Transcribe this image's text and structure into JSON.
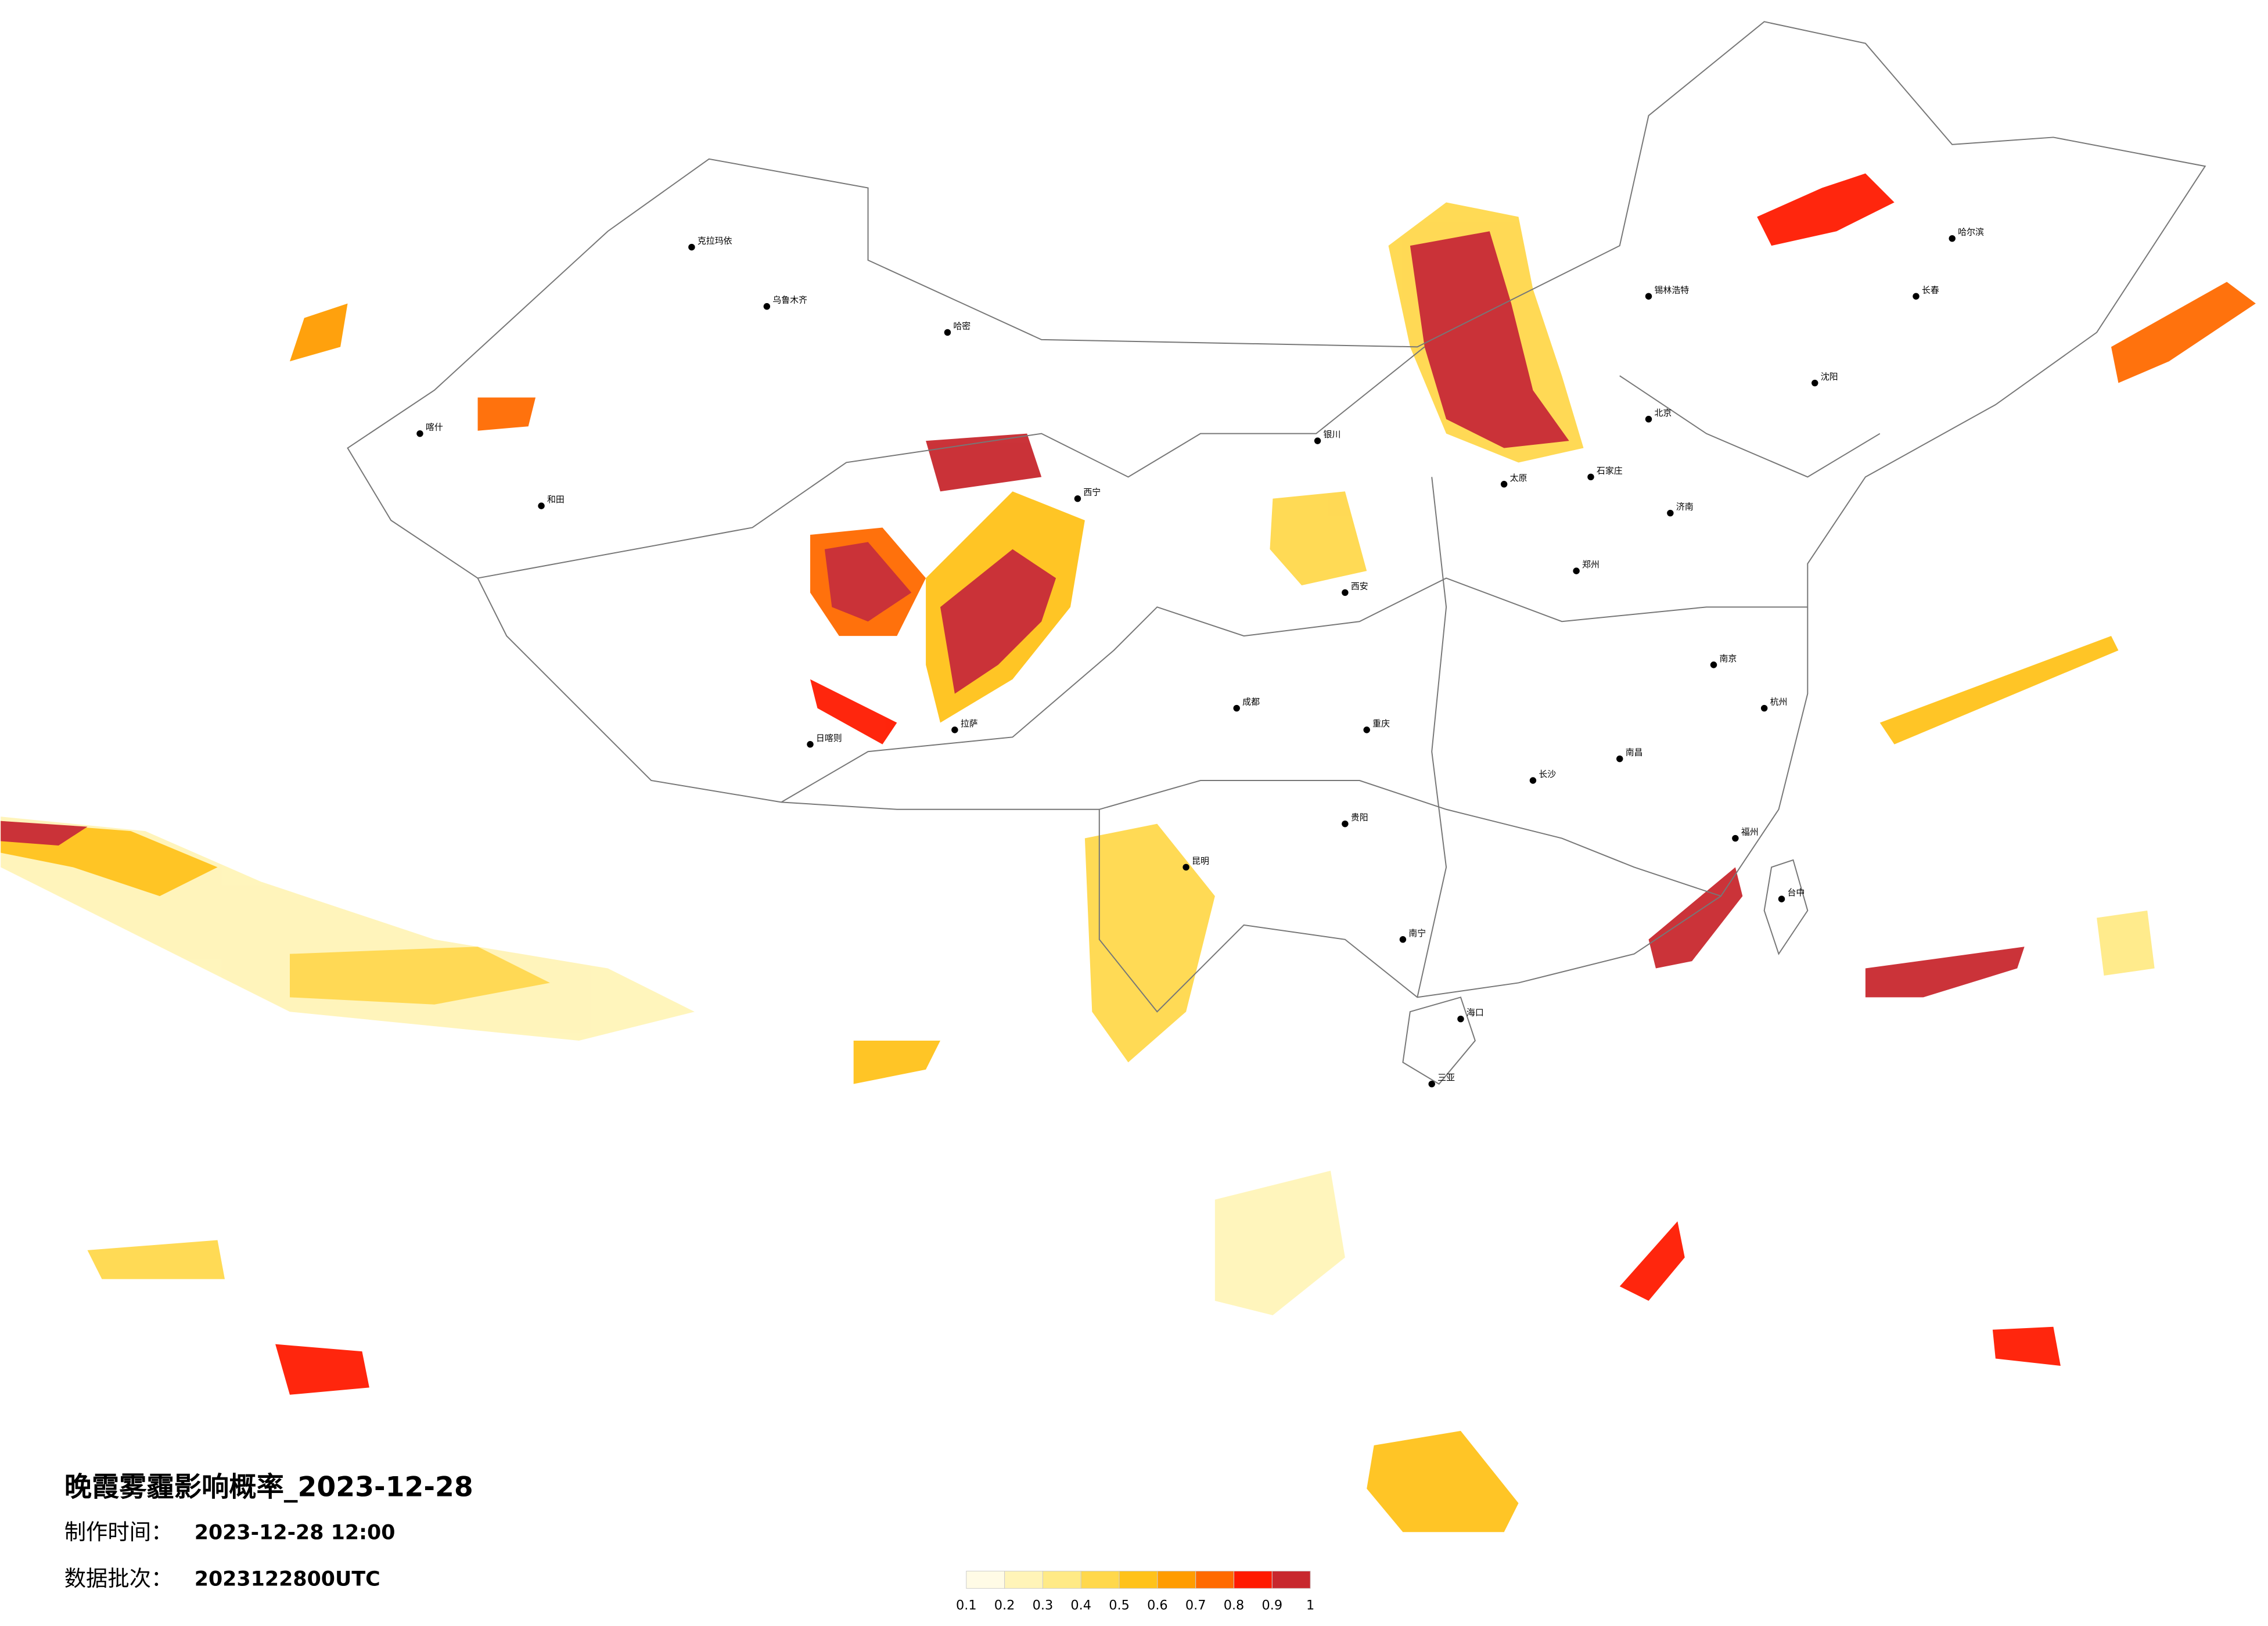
{
  "title": "晚霞雾霾影响概率_2023-12-28",
  "production_time": {
    "label": "制作时间：",
    "value": "2023-12-28 12:00"
  },
  "batch": {
    "label": "数据批次：",
    "value": "2023122800UTC"
  },
  "legend": {
    "ticks": [
      0.1,
      0.2,
      0.3,
      0.4,
      0.5,
      0.6,
      0.7,
      0.8,
      0.9,
      1
    ],
    "colors": [
      "#fffbe6",
      "#fff4b8",
      "#ffea86",
      "#ffd84c",
      "#ffc21a",
      "#ff9c00",
      "#ff6a00",
      "#ff1a00",
      "#c8282e"
    ]
  },
  "cities": [
    "克拉玛依",
    "乌鲁木齐",
    "哈密",
    "喀什",
    "和田",
    "拉萨",
    "日喀则",
    "西宁",
    "银川",
    "锡林浩特",
    "北京",
    "石家庄",
    "太原",
    "郑州",
    "西安",
    "成都",
    "重庆",
    "昆明",
    "贵阳",
    "南宁",
    "长沙",
    "南昌",
    "杭州",
    "南京",
    "济南",
    "沈阳",
    "长春",
    "哈尔滨",
    "福州",
    "台中",
    "海口",
    "三亚"
  ]
}
